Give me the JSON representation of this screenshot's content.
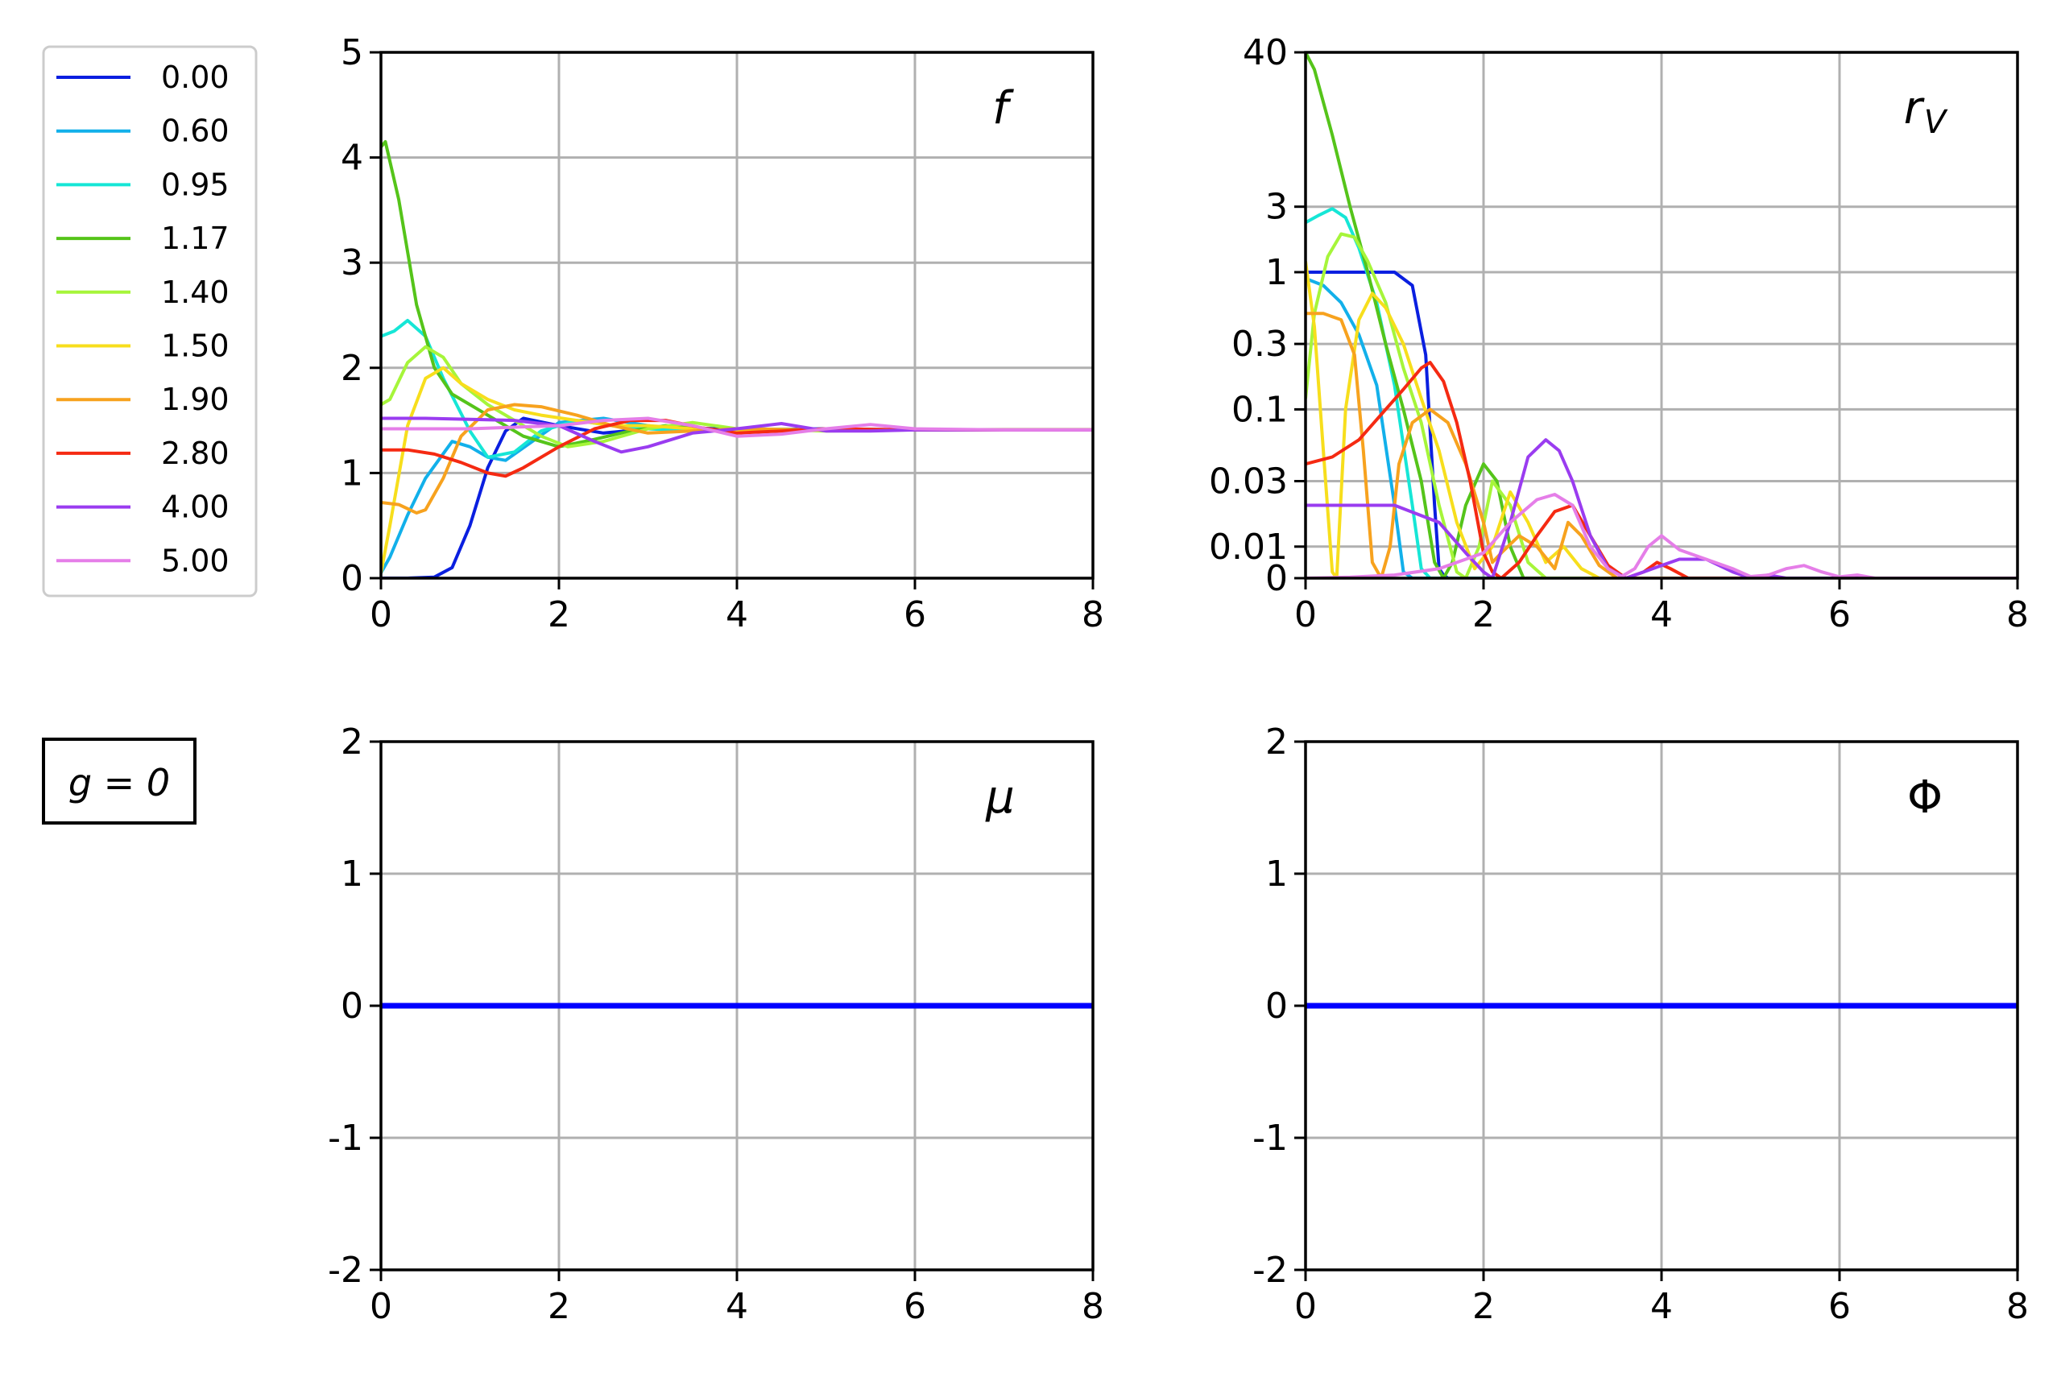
{
  "annotation": {
    "g_label": "g = 0"
  },
  "legend": {
    "placement": "outside-left",
    "entries": [
      {
        "label": "0.00",
        "color": "#0a1fe0"
      },
      {
        "label": "0.60",
        "color": "#12b0ea"
      },
      {
        "label": "0.95",
        "color": "#16e6d6"
      },
      {
        "label": "1.17",
        "color": "#55c41a"
      },
      {
        "label": "1.40",
        "color": "#a6f53a"
      },
      {
        "label": "1.50",
        "color": "#f7de1c"
      },
      {
        "label": "1.90",
        "color": "#f7a21e"
      },
      {
        "label": "2.80",
        "color": "#f52a12"
      },
      {
        "label": "4.00",
        "color": "#9a3cf0"
      },
      {
        "label": "5.00",
        "color": "#e57ee8"
      }
    ]
  },
  "chart_data": [
    {
      "id": "f",
      "type": "line",
      "title": "f",
      "xlim": [
        0,
        8
      ],
      "ylim": [
        0,
        5
      ],
      "xticks": [
        "0",
        "2",
        "4",
        "6",
        "8"
      ],
      "yticks": [
        "0",
        "1",
        "2",
        "3",
        "4",
        "5"
      ],
      "grid": true,
      "series": [
        {
          "name": "0.00",
          "x": [
            0,
            0.3,
            0.6,
            0.8,
            1.0,
            1.2,
            1.4,
            1.6,
            2.0,
            2.5,
            3.0,
            3.5,
            4.0,
            5.0,
            6.0,
            8.0
          ],
          "y": [
            0,
            0,
            0.01,
            0.1,
            0.5,
            1.05,
            1.4,
            1.52,
            1.45,
            1.38,
            1.42,
            1.43,
            1.41,
            1.42,
            1.41,
            1.41
          ]
        },
        {
          "name": "0.60",
          "x": [
            0,
            0.1,
            0.3,
            0.5,
            0.8,
            1.0,
            1.2,
            1.4,
            1.7,
            2.0,
            2.5,
            3.0,
            3.5,
            4.0,
            5.0,
            6.0,
            8.0
          ],
          "y": [
            0.05,
            0.2,
            0.6,
            0.95,
            1.3,
            1.25,
            1.15,
            1.12,
            1.3,
            1.48,
            1.52,
            1.45,
            1.4,
            1.42,
            1.41,
            1.41,
            1.41
          ]
        },
        {
          "name": "0.95",
          "x": [
            0,
            0.15,
            0.3,
            0.5,
            0.7,
            1.0,
            1.2,
            1.5,
            1.8,
            2.2,
            2.6,
            3.0,
            3.5,
            4.0,
            5.0,
            6.0,
            8.0
          ],
          "y": [
            2.3,
            2.35,
            2.45,
            2.3,
            1.9,
            1.4,
            1.15,
            1.2,
            1.4,
            1.5,
            1.45,
            1.42,
            1.4,
            1.42,
            1.41,
            1.41,
            1.41
          ]
        },
        {
          "name": "1.17",
          "x": [
            0,
            0.05,
            0.2,
            0.4,
            0.6,
            0.8,
            1.0,
            1.3,
            1.6,
            2.0,
            2.4,
            2.8,
            3.2,
            3.6,
            4.0,
            5.0,
            6.0,
            8.0
          ],
          "y": [
            4.1,
            4.15,
            3.6,
            2.6,
            2.0,
            1.75,
            1.65,
            1.5,
            1.35,
            1.25,
            1.32,
            1.4,
            1.45,
            1.42,
            1.4,
            1.41,
            1.41,
            1.41
          ]
        },
        {
          "name": "1.40",
          "x": [
            0,
            0.1,
            0.3,
            0.5,
            0.7,
            0.9,
            1.2,
            1.5,
            1.8,
            2.1,
            2.5,
            3.0,
            3.5,
            4.0,
            5.0,
            6.0,
            8.0
          ],
          "y": [
            1.65,
            1.7,
            2.05,
            2.2,
            2.1,
            1.85,
            1.65,
            1.5,
            1.35,
            1.25,
            1.3,
            1.42,
            1.48,
            1.42,
            1.4,
            1.41,
            1.41
          ]
        },
        {
          "name": "1.50",
          "x": [
            0,
            0.1,
            0.3,
            0.5,
            0.7,
            0.9,
            1.2,
            1.5,
            1.8,
            2.2,
            2.6,
            3.0,
            3.5,
            4.0,
            5.0,
            6.0,
            8.0
          ],
          "y": [
            0.05,
            0.5,
            1.45,
            1.9,
            2.0,
            1.85,
            1.7,
            1.6,
            1.55,
            1.5,
            1.45,
            1.45,
            1.42,
            1.4,
            1.41,
            1.41,
            1.41
          ]
        },
        {
          "name": "1.90",
          "x": [
            0,
            0.2,
            0.4,
            0.5,
            0.7,
            0.9,
            1.2,
            1.5,
            1.8,
            2.2,
            2.6,
            3.0,
            3.5,
            4.0,
            5.0,
            6.0,
            8.0
          ],
          "y": [
            0.72,
            0.7,
            0.62,
            0.65,
            0.95,
            1.35,
            1.6,
            1.65,
            1.63,
            1.55,
            1.45,
            1.38,
            1.4,
            1.42,
            1.41,
            1.41,
            1.41
          ]
        },
        {
          "name": "2.80",
          "x": [
            0,
            0.3,
            0.6,
            0.9,
            1.2,
            1.4,
            1.6,
            2.0,
            2.4,
            2.8,
            3.2,
            3.6,
            4.0,
            4.5,
            5.0,
            6.0,
            8.0
          ],
          "y": [
            1.22,
            1.22,
            1.18,
            1.1,
            1.0,
            0.97,
            1.05,
            1.25,
            1.42,
            1.5,
            1.5,
            1.43,
            1.38,
            1.4,
            1.42,
            1.41,
            1.41
          ]
        },
        {
          "name": "4.00",
          "x": [
            0,
            0.5,
            1.0,
            1.5,
            2.0,
            2.4,
            2.7,
            3.0,
            3.5,
            4.0,
            4.5,
            5.0,
            5.5,
            6.0,
            8.0
          ],
          "y": [
            1.52,
            1.52,
            1.51,
            1.5,
            1.45,
            1.3,
            1.2,
            1.25,
            1.38,
            1.42,
            1.47,
            1.4,
            1.4,
            1.41,
            1.41
          ]
        },
        {
          "name": "5.00",
          "x": [
            0,
            1.0,
            2.0,
            2.5,
            3.0,
            3.5,
            4.0,
            4.5,
            5.0,
            5.5,
            6.0,
            7.0,
            8.0
          ],
          "y": [
            1.42,
            1.42,
            1.45,
            1.5,
            1.52,
            1.45,
            1.35,
            1.37,
            1.42,
            1.46,
            1.42,
            1.41,
            1.41
          ]
        }
      ]
    },
    {
      "id": "rv",
      "type": "line",
      "title": "r",
      "title_sub": "V",
      "xlim": [
        0,
        8
      ],
      "yscale": "symlog",
      "ylim": [
        0,
        40
      ],
      "xticks": [
        "0",
        "2",
        "4",
        "6",
        "8"
      ],
      "yticks": [
        "0",
        "0.01",
        "0.03",
        "0.1",
        "0.3",
        "1",
        "3",
        "40"
      ],
      "ytick_values": [
        0,
        0.01,
        0.03,
        0.1,
        0.3,
        1,
        3,
        40
      ],
      "grid": true,
      "series": [
        {
          "name": "0.00",
          "x": [
            0,
            0.5,
            1.0,
            1.2,
            1.35,
            1.45,
            1.5,
            1.55,
            1.6,
            8.0
          ],
          "y": [
            1,
            1,
            1,
            0.8,
            0.25,
            0.02,
            0.003,
            0.001,
            0,
            0
          ]
        },
        {
          "name": "0.60",
          "x": [
            0,
            0.2,
            0.4,
            0.6,
            0.8,
            1.0,
            1.1,
            1.2,
            1.4,
            1.5,
            1.6,
            8.0
          ],
          "y": [
            0.9,
            0.8,
            0.6,
            0.35,
            0.15,
            0.02,
            0.002,
            0,
            0,
            0,
            0,
            0
          ]
        },
        {
          "name": "0.95",
          "x": [
            0,
            0.15,
            0.3,
            0.45,
            0.6,
            0.8,
            1.0,
            1.2,
            1.3,
            1.4,
            8.0
          ],
          "y": [
            2.3,
            2.6,
            2.9,
            2.5,
            1.5,
            0.6,
            0.15,
            0.02,
            0.003,
            0,
            0
          ]
        },
        {
          "name": "1.17",
          "x": [
            0,
            0.1,
            0.3,
            0.5,
            0.7,
            0.9,
            1.1,
            1.3,
            1.45,
            1.55,
            1.65,
            1.8,
            2.0,
            2.15,
            2.3,
            2.45,
            8.0
          ],
          "y": [
            40,
            30,
            10,
            3,
            1,
            0.3,
            0.1,
            0.03,
            0.005,
            0,
            0.005,
            0.02,
            0.04,
            0.03,
            0.01,
            0,
            0
          ]
        },
        {
          "name": "1.40",
          "x": [
            0,
            0.1,
            0.25,
            0.4,
            0.55,
            0.7,
            0.9,
            1.1,
            1.3,
            1.5,
            1.7,
            1.8,
            1.95,
            2.1,
            2.3,
            2.5,
            2.7,
            8.0
          ],
          "y": [
            0.12,
            0.5,
            1.3,
            1.9,
            1.8,
            1.2,
            0.6,
            0.2,
            0.08,
            0.02,
            0.002,
            0,
            0.01,
            0.03,
            0.02,
            0.005,
            0,
            0
          ]
        },
        {
          "name": "1.50",
          "x": [
            0,
            0.1,
            0.2,
            0.3,
            0.35,
            0.45,
            0.6,
            0.75,
            0.9,
            1.1,
            1.3,
            1.5,
            1.7,
            1.9,
            2.1,
            2.3,
            2.5,
            2.7,
            2.9,
            3.1,
            3.3,
            8.0
          ],
          "y": [
            1.2,
            0.4,
            0.05,
            0.002,
            0,
            0.1,
            0.45,
            0.7,
            0.55,
            0.3,
            0.12,
            0.05,
            0.015,
            0.003,
            0.01,
            0.025,
            0.015,
            0.005,
            0.01,
            0.003,
            0,
            0
          ]
        },
        {
          "name": "1.90",
          "x": [
            0,
            0.2,
            0.4,
            0.55,
            0.65,
            0.75,
            0.85,
            0.95,
            1.05,
            1.2,
            1.4,
            1.6,
            1.8,
            2.0,
            2.1,
            2.2,
            2.4,
            2.6,
            2.8,
            2.95,
            3.1,
            3.3,
            3.5,
            8.0
          ],
          "y": [
            0.5,
            0.5,
            0.45,
            0.25,
            0.05,
            0.005,
            0,
            0.01,
            0.04,
            0.08,
            0.1,
            0.08,
            0.04,
            0.015,
            0.005,
            0.008,
            0.012,
            0.01,
            0.003,
            0.015,
            0.012,
            0.004,
            0,
            0
          ]
        },
        {
          "name": "2.80",
          "x": [
            0,
            0.3,
            0.6,
            0.9,
            1.1,
            1.3,
            1.4,
            1.55,
            1.7,
            1.85,
            2.0,
            2.1,
            2.2,
            2.4,
            2.6,
            2.8,
            3.0,
            3.2,
            3.4,
            3.6,
            3.8,
            3.95,
            4.1,
            4.3,
            8.0
          ],
          "y": [
            0.04,
            0.045,
            0.06,
            0.1,
            0.14,
            0.2,
            0.22,
            0.16,
            0.08,
            0.03,
            0.008,
            0.002,
            0,
            0.005,
            0.012,
            0.018,
            0.02,
            0.012,
            0.004,
            0,
            0.002,
            0.005,
            0.003,
            0,
            0
          ]
        },
        {
          "name": "4.00",
          "x": [
            0,
            0.5,
            1.0,
            1.5,
            1.8,
            2.0,
            2.1,
            2.3,
            2.5,
            2.7,
            2.85,
            3.0,
            3.2,
            3.4,
            3.6,
            3.8,
            4.0,
            4.2,
            4.5,
            4.8,
            5.0,
            5.2,
            5.4,
            8.0
          ],
          "y": [
            0.02,
            0.02,
            0.02,
            0.015,
            0.008,
            0.002,
            0,
            0.015,
            0.045,
            0.06,
            0.05,
            0.03,
            0.012,
            0.003,
            0,
            0.002,
            0.004,
            0.006,
            0.006,
            0.002,
            0,
            0.001,
            0,
            0
          ]
        },
        {
          "name": "5.00",
          "x": [
            0,
            0.5,
            1.0,
            1.5,
            2.0,
            2.3,
            2.6,
            2.8,
            3.0,
            3.2,
            3.4,
            3.55,
            3.7,
            3.85,
            4.0,
            4.2,
            4.5,
            4.8,
            5.0,
            5.2,
            5.4,
            5.6,
            5.8,
            6.0,
            6.2,
            6.4,
            8.0
          ],
          "y": [
            0,
            0.0003,
            0.001,
            0.003,
            0.008,
            0.015,
            0.022,
            0.024,
            0.02,
            0.01,
            0.003,
            0.0005,
            0.003,
            0.01,
            0.012,
            0.009,
            0.006,
            0.003,
            0.0005,
            0.001,
            0.003,
            0.004,
            0.002,
            0.0004,
            0.001,
            0,
            0
          ]
        }
      ]
    },
    {
      "id": "mu",
      "type": "line",
      "title": "μ",
      "xlim": [
        0,
        8
      ],
      "ylim": [
        -2,
        2
      ],
      "xticks": [
        "0",
        "2",
        "4",
        "6",
        "8"
      ],
      "yticks": [
        "-2",
        "-1",
        "0",
        "1",
        "2"
      ],
      "grid": true,
      "series": [
        {
          "name": "",
          "color": "#0000ff",
          "x": [
            0,
            8
          ],
          "y": [
            0,
            0
          ]
        }
      ]
    },
    {
      "id": "phi",
      "type": "line",
      "title": "Φ",
      "xlim": [
        0,
        8
      ],
      "ylim": [
        -2,
        2
      ],
      "xticks": [
        "0",
        "2",
        "4",
        "6",
        "8"
      ],
      "yticks": [
        "-2",
        "-1",
        "0",
        "1",
        "2"
      ],
      "grid": true,
      "series": [
        {
          "name": "",
          "color": "#0000ff",
          "x": [
            0,
            8
          ],
          "y": [
            0,
            0
          ]
        }
      ]
    }
  ]
}
